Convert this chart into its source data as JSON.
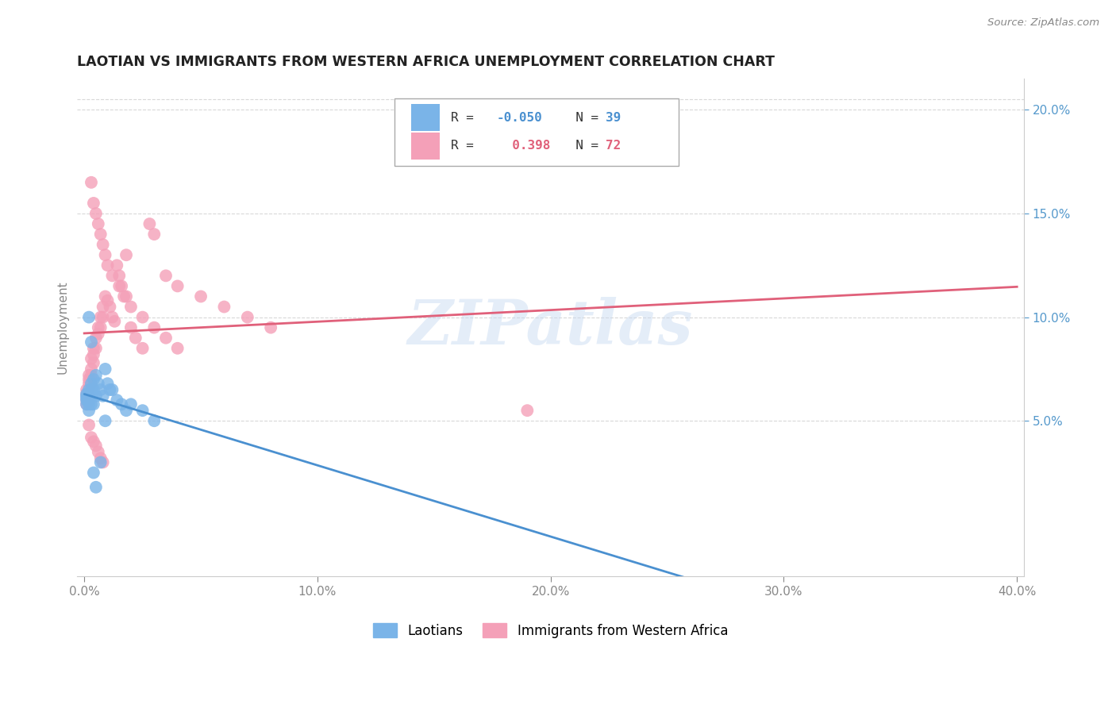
{
  "title": "LAOTIAN VS IMMIGRANTS FROM WESTERN AFRICA UNEMPLOYMENT CORRELATION CHART",
  "source": "Source: ZipAtlas.com",
  "ylabel": "Unemployment",
  "right_yticks": [
    "20.0%",
    "15.0%",
    "10.0%",
    "5.0%"
  ],
  "right_ytick_vals": [
    0.2,
    0.15,
    0.1,
    0.05
  ],
  "watermark": "ZIPatlas",
  "color_laotian": "#7ab4e8",
  "color_western_africa": "#f4a0b8",
  "color_line_laotian": "#4a90d0",
  "color_line_western_africa": "#e0607a",
  "background_color": "#ffffff",
  "laotian_x": [
    0.001,
    0.001,
    0.001,
    0.001,
    0.001,
    0.002,
    0.002,
    0.002,
    0.002,
    0.002,
    0.002,
    0.003,
    0.003,
    0.003,
    0.003,
    0.004,
    0.004,
    0.004,
    0.005,
    0.005,
    0.006,
    0.007,
    0.008,
    0.009,
    0.01,
    0.011,
    0.012,
    0.014,
    0.016,
    0.018,
    0.02,
    0.025,
    0.03,
    0.002,
    0.003,
    0.004,
    0.005,
    0.007,
    0.009
  ],
  "laotian_y": [
    0.063,
    0.062,
    0.061,
    0.06,
    0.058,
    0.065,
    0.063,
    0.062,
    0.06,
    0.058,
    0.055,
    0.068,
    0.065,
    0.062,
    0.058,
    0.07,
    0.065,
    0.058,
    0.072,
    0.062,
    0.068,
    0.065,
    0.062,
    0.075,
    0.068,
    0.065,
    0.065,
    0.06,
    0.058,
    0.055,
    0.058,
    0.055,
    0.05,
    0.1,
    0.088,
    0.025,
    0.018,
    0.03,
    0.05
  ],
  "wa_x": [
    0.001,
    0.001,
    0.001,
    0.001,
    0.001,
    0.002,
    0.002,
    0.002,
    0.002,
    0.002,
    0.002,
    0.003,
    0.003,
    0.003,
    0.003,
    0.004,
    0.004,
    0.004,
    0.005,
    0.005,
    0.006,
    0.006,
    0.007,
    0.007,
    0.008,
    0.008,
    0.009,
    0.01,
    0.011,
    0.012,
    0.013,
    0.014,
    0.015,
    0.016,
    0.017,
    0.018,
    0.02,
    0.022,
    0.025,
    0.028,
    0.03,
    0.035,
    0.04,
    0.05,
    0.06,
    0.07,
    0.08,
    0.19,
    0.003,
    0.004,
    0.005,
    0.006,
    0.007,
    0.008,
    0.009,
    0.01,
    0.012,
    0.015,
    0.018,
    0.02,
    0.025,
    0.03,
    0.035,
    0.04,
    0.002,
    0.003,
    0.004,
    0.005,
    0.006,
    0.007,
    0.008
  ],
  "wa_y": [
    0.065,
    0.063,
    0.062,
    0.06,
    0.058,
    0.072,
    0.07,
    0.068,
    0.065,
    0.062,
    0.06,
    0.08,
    0.075,
    0.072,
    0.068,
    0.085,
    0.082,
    0.078,
    0.09,
    0.085,
    0.095,
    0.092,
    0.1,
    0.095,
    0.105,
    0.1,
    0.11,
    0.108,
    0.105,
    0.1,
    0.098,
    0.125,
    0.12,
    0.115,
    0.11,
    0.13,
    0.095,
    0.09,
    0.085,
    0.145,
    0.14,
    0.12,
    0.115,
    0.11,
    0.105,
    0.1,
    0.095,
    0.055,
    0.165,
    0.155,
    0.15,
    0.145,
    0.14,
    0.135,
    0.13,
    0.125,
    0.12,
    0.115,
    0.11,
    0.105,
    0.1,
    0.095,
    0.09,
    0.085,
    0.048,
    0.042,
    0.04,
    0.038,
    0.035,
    0.032,
    0.03
  ],
  "line_laotian_start_x": 0.0,
  "line_laotian_end_x": 0.4,
  "line_laotian_solid_end_x": 0.28,
  "line_wa_start_x": 0.0,
  "line_wa_end_x": 0.4,
  "xlim": [
    -0.003,
    0.403
  ],
  "ylim": [
    -0.025,
    0.215
  ]
}
